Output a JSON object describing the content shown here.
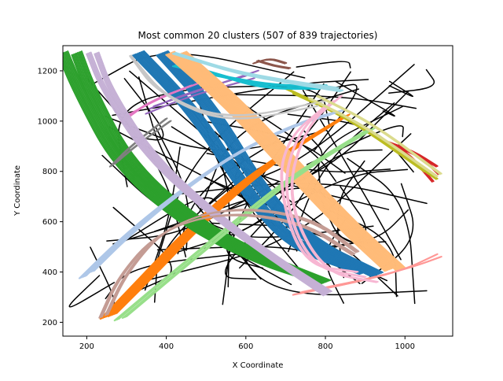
{
  "chart_data": {
    "type": "line",
    "title": "Most common 20 clusters (507 of 839 trajectories)",
    "xlabel": "X Coordinate",
    "ylabel": "Y Coordinate",
    "xlim": [
      140,
      1120
    ],
    "ylim": [
      145,
      1300
    ],
    "xticks": [
      200,
      400,
      600,
      800,
      1000
    ],
    "yticks": [
      200,
      400,
      600,
      800,
      1000,
      1200
    ],
    "grid": false,
    "legend": "none",
    "noise_color": "#000000",
    "clusters": [
      {
        "color": "#1f77b4",
        "width": 18,
        "lines": [
          [
            [
              390,
              1270
            ],
            [
              520,
              1040
            ],
            [
              640,
              720
            ],
            [
              760,
              520
            ],
            [
              930,
              390
            ]
          ],
          [
            [
              330,
              1270
            ],
            [
              470,
              1040
            ],
            [
              600,
              720
            ],
            [
              720,
              500
            ],
            [
              900,
              400
            ]
          ]
        ]
      },
      {
        "color": "#ff7f0e",
        "width": 14,
        "lines": [
          [
            [
              245,
              220
            ],
            [
              330,
              360
            ],
            [
              450,
              560
            ],
            [
              620,
              800
            ],
            [
              830,
              1000
            ]
          ],
          [
            [
              265,
              230
            ],
            [
              360,
              380
            ],
            [
              480,
              580
            ],
            [
              650,
              820
            ],
            [
              850,
              1020
            ]
          ]
        ]
      },
      {
        "color": "#2ca02c",
        "width": 16,
        "lines": [
          [
            [
              140,
              1270
            ],
            [
              180,
              1120
            ],
            [
              280,
              820
            ],
            [
              460,
              580
            ],
            [
              640,
              440
            ],
            [
              780,
              370
            ]
          ],
          [
            [
              175,
              1270
            ],
            [
              210,
              1120
            ],
            [
              310,
              820
            ],
            [
              490,
              580
            ],
            [
              670,
              440
            ],
            [
              800,
              360
            ]
          ]
        ]
      },
      {
        "color": "#d62728",
        "width": 2,
        "lines": [
          [
            [
              950,
              920
            ],
            [
              1020,
              880
            ],
            [
              1080,
              820
            ]
          ],
          [
            [
              940,
              930
            ],
            [
              1010,
              870
            ],
            [
              1070,
              760
            ]
          ],
          [
            [
              960,
              910
            ],
            [
              1040,
              860
            ],
            [
              1085,
              790
            ]
          ]
        ]
      },
      {
        "color": "#9467bd",
        "width": 4,
        "lines": [
          [
            [
              360,
              1050
            ],
            [
              450,
              1110
            ],
            [
              600,
              1180
            ]
          ],
          [
            [
              350,
              1030
            ],
            [
              460,
              1100
            ],
            [
              620,
              1170
            ]
          ],
          [
            [
              370,
              1060
            ],
            [
              480,
              1120
            ],
            [
              630,
              1200
            ]
          ]
        ]
      },
      {
        "color": "#8c564b",
        "width": 2,
        "lines": [
          [
            [
              620,
              1230
            ],
            [
              660,
              1250
            ],
            [
              700,
              1230
            ]
          ],
          [
            [
              630,
              1240
            ],
            [
              670,
              1220
            ],
            [
              710,
              1210
            ]
          ]
        ]
      },
      {
        "color": "#e377c2",
        "width": 6,
        "lines": [
          [
            [
              290,
              1000
            ],
            [
              360,
              1080
            ],
            [
              460,
              1140
            ]
          ],
          [
            [
              300,
              1020
            ],
            [
              380,
              1090
            ],
            [
              480,
              1150
            ]
          ]
        ]
      },
      {
        "color": "#7f7f7f",
        "width": 2,
        "lines": [
          [
            [
              260,
              820
            ],
            [
              310,
              900
            ],
            [
              400,
              1010
            ]
          ],
          [
            [
              270,
              830
            ],
            [
              330,
              910
            ],
            [
              410,
              1000
            ]
          ]
        ]
      },
      {
        "color": "#bcbd22",
        "width": 2,
        "lines": [
          [
            [
              720,
              1110
            ],
            [
              860,
              1010
            ],
            [
              1050,
              800
            ]
          ],
          [
            [
              700,
              1130
            ],
            [
              850,
              1020
            ],
            [
              1080,
              770
            ]
          ]
        ]
      },
      {
        "color": "#17becf",
        "width": 6,
        "lines": [
          [
            [
              430,
              1230
            ],
            [
              540,
              1180
            ],
            [
              650,
              1130
            ],
            [
              790,
              1130
            ]
          ],
          [
            [
              420,
              1220
            ],
            [
              560,
              1170
            ],
            [
              680,
              1140
            ],
            [
              800,
              1140
            ]
          ]
        ]
      },
      {
        "color": "#aec7e8",
        "width": 12,
        "lines": [
          [
            [
              190,
              380
            ],
            [
              280,
              520
            ],
            [
              400,
              680
            ],
            [
              560,
              860
            ],
            [
              720,
              980
            ],
            [
              820,
              1030
            ]
          ],
          [
            [
              210,
              400
            ],
            [
              300,
              540
            ],
            [
              420,
              700
            ],
            [
              580,
              880
            ],
            [
              740,
              1000
            ],
            [
              840,
              1040
            ]
          ]
        ]
      },
      {
        "color": "#ffbb78",
        "width": 14,
        "lines": [
          [
            [
              410,
              1270
            ],
            [
              560,
              1060
            ],
            [
              700,
              820
            ],
            [
              830,
              600
            ],
            [
              960,
              410
            ]
          ],
          [
            [
              440,
              1270
            ],
            [
              590,
              1060
            ],
            [
              730,
              820
            ],
            [
              860,
              600
            ],
            [
              990,
              410
            ]
          ]
        ]
      },
      {
        "color": "#98df8a",
        "width": 8,
        "lines": [
          [
            [
              275,
              210
            ],
            [
              380,
              350
            ],
            [
              540,
              560
            ],
            [
              720,
              790
            ],
            [
              900,
              960
            ]
          ],
          [
            [
              295,
              220
            ],
            [
              400,
              360
            ],
            [
              560,
              570
            ],
            [
              740,
              800
            ],
            [
              920,
              970
            ]
          ]
        ]
      },
      {
        "color": "#ff9896",
        "width": 4,
        "lines": [
          [
            [
              720,
              310
            ],
            [
              880,
              360
            ],
            [
              1000,
              410
            ],
            [
              1080,
              470
            ]
          ],
          [
            [
              740,
              320
            ],
            [
              900,
              370
            ],
            [
              1020,
              420
            ],
            [
              1090,
              460
            ]
          ]
        ]
      },
      {
        "color": "#c5b0d5",
        "width": 8,
        "lines": [
          [
            [
              205,
              1270
            ],
            [
              240,
              1130
            ],
            [
              350,
              860
            ],
            [
              520,
              620
            ],
            [
              660,
              460
            ],
            [
              800,
              310
            ]
          ],
          [
            [
              225,
              1270
            ],
            [
              260,
              1120
            ],
            [
              370,
              850
            ],
            [
              540,
              610
            ],
            [
              680,
              450
            ],
            [
              810,
              320
            ]
          ]
        ]
      },
      {
        "color": "#c49c94",
        "width": 6,
        "lines": [
          [
            [
              235,
              220
            ],
            [
              280,
              380
            ],
            [
              380,
              560
            ],
            [
              540,
              640
            ],
            [
              740,
              600
            ],
            [
              870,
              470
            ]
          ],
          [
            [
              250,
              230
            ],
            [
              300,
              400
            ],
            [
              400,
              580
            ],
            [
              560,
              660
            ],
            [
              760,
              620
            ],
            [
              880,
              480
            ]
          ]
        ]
      },
      {
        "color": "#f7b6d2",
        "width": 3,
        "lines": [
          [
            [
              820,
              1080
            ],
            [
              730,
              960
            ],
            [
              690,
              720
            ],
            [
              760,
              420
            ],
            [
              900,
              380
            ]
          ],
          [
            [
              840,
              1100
            ],
            [
              750,
              980
            ],
            [
              700,
              700
            ],
            [
              790,
              400
            ],
            [
              930,
              360
            ]
          ],
          [
            [
              800,
              1060
            ],
            [
              710,
              940
            ],
            [
              680,
              760
            ],
            [
              740,
              430
            ],
            [
              880,
              400
            ]
          ]
        ]
      },
      {
        "color": "#c7c7c7",
        "width": 4,
        "lines": [
          [
            [
              310,
              1260
            ],
            [
              380,
              1110
            ],
            [
              550,
              1000
            ],
            [
              800,
              1080
            ]
          ],
          [
            [
              320,
              1240
            ],
            [
              400,
              1090
            ],
            [
              560,
              990
            ],
            [
              780,
              1060
            ]
          ]
        ]
      },
      {
        "color": "#dbdb8d",
        "width": 4,
        "lines": [
          [
            [
              760,
              1090
            ],
            [
              900,
              980
            ],
            [
              1080,
              780
            ]
          ],
          [
            [
              780,
              1100
            ],
            [
              920,
              990
            ],
            [
              1090,
              790
            ]
          ]
        ]
      },
      {
        "color": "#9edae5",
        "width": 6,
        "lines": [
          [
            [
              420,
              1270
            ],
            [
              560,
              1200
            ],
            [
              700,
              1160
            ],
            [
              830,
              1130
            ]
          ],
          [
            [
              440,
              1260
            ],
            [
              580,
              1190
            ],
            [
              720,
              1150
            ],
            [
              840,
              1120
            ]
          ]
        ]
      }
    ]
  }
}
